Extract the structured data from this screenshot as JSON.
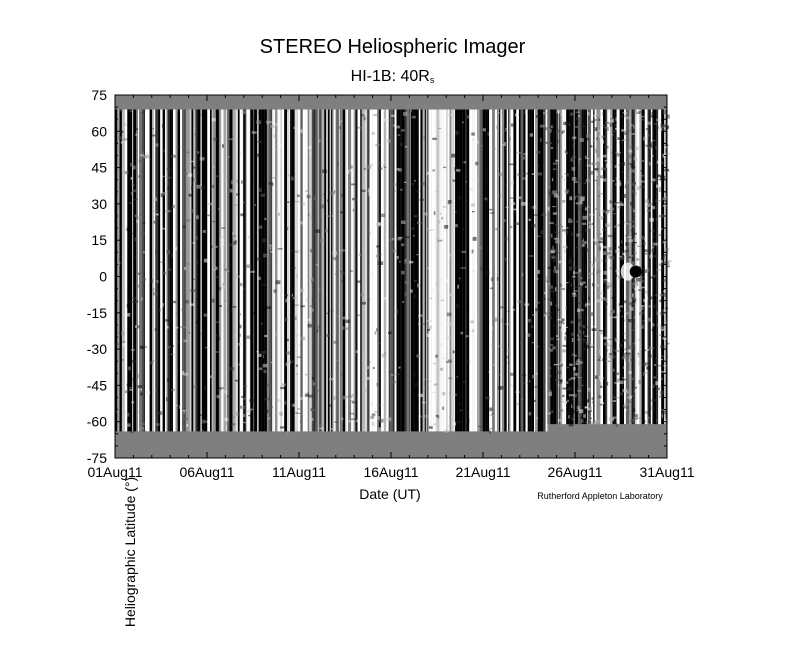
{
  "chart_data": {
    "type": "heatmap",
    "title": "STEREO Heliospheric Imager",
    "subtitle_main": "HI-1B: 40R",
    "subtitle_sub": "s",
    "xlabel": "Date (UT)",
    "ylabel": "Heliographic Latitude (°)",
    "credit": "Rutherford Appleton Laboratory",
    "x_tick_labels": [
      "01Aug11",
      "06Aug11",
      "11Aug11",
      "16Aug11",
      "21Aug11",
      "26Aug11",
      "31Aug11"
    ],
    "x_ticks_day": [
      1,
      6,
      11,
      16,
      21,
      26,
      31
    ],
    "xlim_day": [
      1,
      31
    ],
    "y_ticks": [
      75,
      60,
      45,
      30,
      15,
      0,
      -15,
      -30,
      -45,
      -60,
      -75
    ],
    "ylim": [
      -75,
      75
    ],
    "data_coverage_lat": [
      {
        "day_start": 1,
        "day_end": 24.5,
        "lat_min": -64,
        "lat_max": 69
      },
      {
        "day_start": 24.5,
        "day_end": 31,
        "lat_min": -61,
        "lat_max": 69
      }
    ],
    "features": [
      {
        "label": "dark blob",
        "day": 29.3,
        "lat": 2
      }
    ],
    "colors": {
      "no_data": "#7f7f7f",
      "background": "#ffffff",
      "dark": "#000000",
      "light": "#ffffff"
    },
    "grid": false,
    "colormap": "grayscale"
  }
}
